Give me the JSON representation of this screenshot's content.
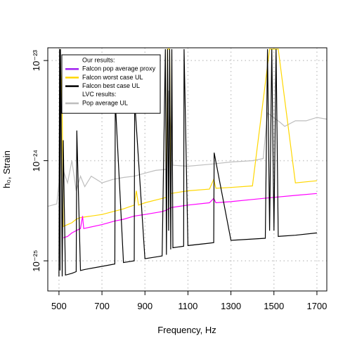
{
  "chart_data": {
    "type": "line",
    "xlabel": "Frequency, Hz",
    "ylabel": "h₀, Strain",
    "xlim": [
      448,
      1746
    ],
    "ylim": [
      5e-26,
      1.34e-23
    ],
    "log_y": true,
    "grid": true,
    "xticks": [
      500,
      700,
      900,
      1100,
      1300,
      1500,
      1700
    ],
    "yticks": [
      {
        "value": 1e-25,
        "label": "10⁻²⁵"
      },
      {
        "value": 1e-24,
        "label": "10⁻²⁴"
      },
      {
        "value": 1e-23,
        "label": "10⁻²³"
      }
    ],
    "legend_groups": [
      "Our results:",
      "LVC results:"
    ],
    "legend_corner": "top-left",
    "series": [
      {
        "name": "Pop average UL",
        "color": "#bebebe",
        "x": [
          448,
          470,
          490,
          500,
          505,
          510,
          520,
          540,
          560,
          580,
          600,
          620,
          650,
          700,
          750,
          800,
          850,
          900,
          950,
          1000,
          1010,
          1030,
          1100,
          1200,
          1300,
          1400,
          1450,
          1470,
          1530,
          1550,
          1600,
          1650,
          1700,
          1746
        ],
        "values": [
          3.5e-25,
          3.6e-25,
          3.7e-25,
          6e-25,
          1e-23,
          2e-24,
          8e-25,
          6e-25,
          1e-24,
          5e-25,
          7e-25,
          5.5e-25,
          7e-25,
          6e-25,
          6.5e-25,
          6.8e-25,
          7e-25,
          7.5e-25,
          8e-25,
          8.2e-25,
          5e-24,
          9e-25,
          8.8e-25,
          9.2e-25,
          9.7e-25,
          1e-24,
          1.05e-24,
          3e-24,
          2.4e-24,
          2.2e-24,
          2.5e-24,
          2.5e-24,
          2.7e-24,
          2.6e-24
        ]
      },
      {
        "name": "Falcon worst case UL",
        "color": "#ffd700",
        "x": [
          505,
          515,
          520,
          540,
          560,
          580,
          600,
          700,
          800,
          850,
          860,
          870,
          900,
          1000,
          1005,
          1015,
          1020,
          1100,
          1200,
          1220,
          1230,
          1300,
          1400,
          1480,
          1500,
          1520,
          1600,
          1700
        ],
        "values": [
          1.3e-23,
          3e-24,
          2.2e-25,
          2.3e-25,
          2.4e-25,
          2.6e-25,
          2.7e-25,
          2.9e-25,
          3.3e-25,
          3.6e-25,
          5e-25,
          3.6e-25,
          3.8e-25,
          4.3e-25,
          1.3e-23,
          1.3e-23,
          4.7e-25,
          5e-25,
          5.2e-25,
          6.5e-25,
          5.3e-25,
          5.4e-25,
          5.6e-25,
          1.3e-23,
          1.3e-23,
          1.3e-23,
          6e-25,
          6.3e-25
        ]
      },
      {
        "name": "Falcon pop average proxy",
        "color": "#ff00ff",
        "legend_color": "#a020f0",
        "x": [
          520,
          540,
          560,
          580,
          600,
          610,
          615,
          700,
          760,
          800,
          850,
          900,
          980,
          1000,
          1020,
          1100,
          1200,
          1220,
          1230,
          1300,
          1400,
          1500,
          1600,
          1700
        ],
        "values": [
          1.7e-25,
          1.75e-25,
          1.9e-25,
          2e-25,
          2.1e-25,
          2.8e-25,
          2.1e-25,
          2.3e-25,
          2.5e-25,
          2.6e-25,
          2.8e-25,
          2.9e-25,
          3.1e-25,
          3.2e-25,
          3.4e-25,
          3.6e-25,
          3.8e-25,
          4.2e-25,
          3.8e-25,
          3.9e-25,
          4.1e-25,
          4.3e-25,
          4.5e-25,
          4.7e-25
        ]
      },
      {
        "name": "Falcon best case UL",
        "color": "#000000",
        "x": [
          500,
          503,
          505,
          507,
          510,
          515,
          520,
          530,
          560,
          580,
          583,
          600,
          620,
          700,
          760,
          762,
          800,
          850,
          852,
          900,
          960,
          980,
          995,
          1000,
          1005,
          1010,
          1015,
          1020,
          1025,
          1030,
          1080,
          1082,
          1100,
          1200,
          1220,
          1222,
          1300,
          1400,
          1460,
          1470,
          1480,
          1490,
          1500,
          1510,
          1520,
          1530,
          1600,
          1700
        ],
        "values": [
          7e-26,
          1.3e-23,
          8e-26,
          1.3e-23,
          3e-24,
          7e-26,
          1.6e-24,
          7.2e-26,
          7.5e-26,
          7.8e-26,
          2e-24,
          8e-26,
          8.2e-26,
          8.8e-26,
          9.3e-26,
          4e-24,
          9.6e-26,
          1e-25,
          4e-24,
          1.05e-25,
          1.1e-25,
          1.12e-25,
          1.3e-23,
          1.15e-25,
          1.3e-23,
          2e-25,
          1.3e-23,
          1.3e-25,
          1.3e-23,
          1.35e-25,
          1.4e-25,
          1.3e-23,
          1.42e-25,
          1.5e-25,
          1.52e-25,
          1.2e-24,
          1.6e-25,
          1.65e-25,
          1.68e-25,
          1.3e-23,
          2e-25,
          1.3e-23,
          2e-25,
          1.3e-23,
          1.75e-25,
          1.76e-25,
          1.8e-25,
          1.9e-25
        ]
      }
    ]
  }
}
